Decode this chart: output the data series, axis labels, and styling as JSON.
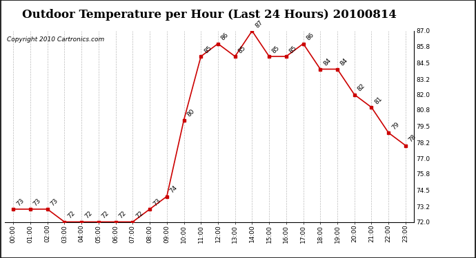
{
  "title": "Outdoor Temperature per Hour (Last 24 Hours) 20100814",
  "copyright": "Copyright 2010 Cartronics.com",
  "hours": [
    "00:00",
    "01:00",
    "02:00",
    "03:00",
    "04:00",
    "05:00",
    "06:00",
    "07:00",
    "08:00",
    "09:00",
    "10:00",
    "11:00",
    "12:00",
    "13:00",
    "14:00",
    "15:00",
    "16:00",
    "17:00",
    "18:00",
    "19:00",
    "20:00",
    "21:00",
    "22:00",
    "23:00"
  ],
  "temps": [
    73,
    73,
    73,
    72,
    72,
    72,
    72,
    72,
    73,
    74,
    80,
    85,
    86,
    85,
    87,
    85,
    85,
    86,
    84,
    84,
    82,
    81,
    79,
    78
  ],
  "line_color": "#cc0000",
  "marker_color": "#cc0000",
  "bg_color": "#ffffff",
  "plot_bg_color": "#ffffff",
  "grid_color": "#bbbbbb",
  "ylim": [
    72.0,
    87.0
  ],
  "yticks": [
    72.0,
    73.2,
    74.5,
    75.8,
    77.0,
    78.2,
    79.5,
    80.8,
    82.0,
    83.2,
    84.5,
    85.8,
    87.0
  ],
  "title_fontsize": 12,
  "copyright_fontsize": 6.5,
  "label_fontsize": 6.5,
  "annot_fontsize": 6.5
}
